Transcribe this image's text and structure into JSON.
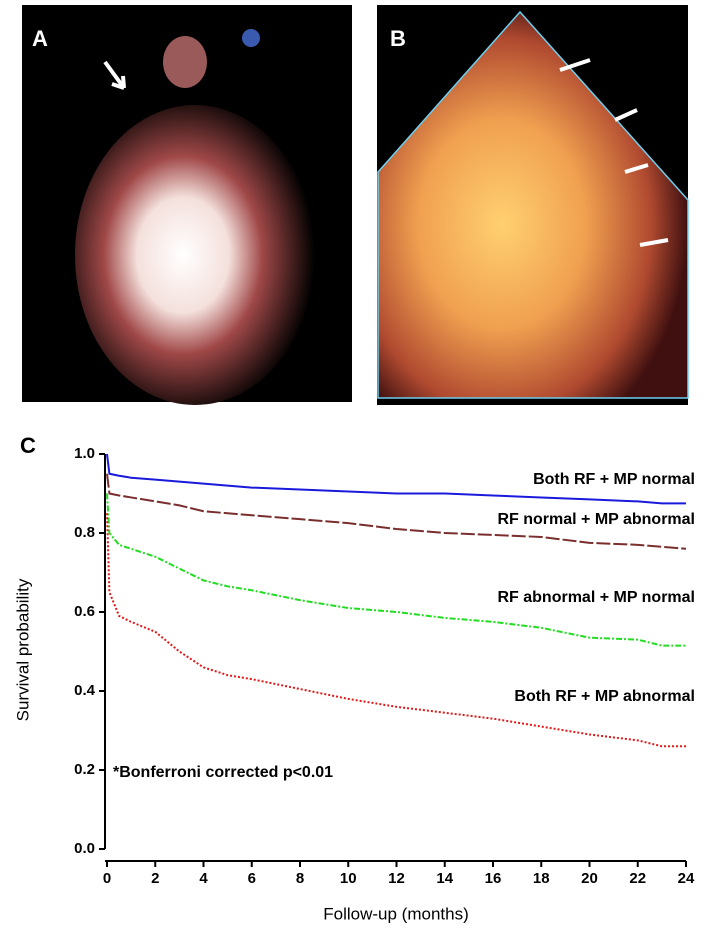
{
  "panels": {
    "a": {
      "label": "A"
    },
    "b": {
      "label": "B"
    }
  },
  "chart_data": {
    "type": "line",
    "panel_label": "C",
    "x_label": "Follow-up (months)",
    "y_label": "Survival probability",
    "annotation": "*Bonferroni corrected p<0.01",
    "x": [
      0,
      0.1,
      0.5,
      1,
      2,
      3,
      4,
      5,
      6,
      8,
      10,
      12,
      14,
      16,
      18,
      20,
      22,
      23,
      24
    ],
    "series": [
      {
        "name": "Both RF + MP normal",
        "color": "#1a1adc",
        "dash": "none",
        "values": [
          1.0,
          0.95,
          0.945,
          0.94,
          0.935,
          0.93,
          0.925,
          0.92,
          0.915,
          0.91,
          0.905,
          0.9,
          0.9,
          0.895,
          0.89,
          0.885,
          0.88,
          0.875,
          0.875
        ]
      },
      {
        "name": "RF normal + MP abnormal",
        "color": "#7a2e2e",
        "dash": "14 3",
        "values": [
          0.95,
          0.9,
          0.895,
          0.89,
          0.88,
          0.87,
          0.855,
          0.85,
          0.845,
          0.835,
          0.825,
          0.81,
          0.8,
          0.795,
          0.79,
          0.775,
          0.77,
          0.765,
          0.76
        ]
      },
      {
        "name": "RF abnormal + MP normal",
        "color": "#22dd22",
        "dash": "6 2 2 2",
        "values": [
          0.9,
          0.8,
          0.77,
          0.76,
          0.74,
          0.71,
          0.68,
          0.665,
          0.655,
          0.63,
          0.61,
          0.6,
          0.585,
          0.575,
          0.56,
          0.535,
          0.53,
          0.515,
          0.515
        ]
      },
      {
        "name": "Both RF + MP abnormal",
        "color": "#e01818",
        "dash": "2 2",
        "values": [
          0.85,
          0.65,
          0.59,
          0.575,
          0.55,
          0.5,
          0.46,
          0.44,
          0.43,
          0.405,
          0.38,
          0.36,
          0.345,
          0.33,
          0.31,
          0.29,
          0.275,
          0.26,
          0.26
        ]
      }
    ],
    "xlim": [
      0,
      24
    ],
    "xticks": [
      0,
      2,
      4,
      6,
      8,
      10,
      12,
      14,
      16,
      18,
      20,
      22,
      24
    ],
    "ylim": [
      0,
      1.0
    ],
    "yticks": [
      {
        "value": 0,
        "label": "0.0"
      },
      {
        "value": 0.2,
        "label": "0.2"
      },
      {
        "value": 0.4,
        "label": "0.4"
      },
      {
        "value": 0.6,
        "label": "0.6"
      },
      {
        "value": 0.8,
        "label": "0.8"
      },
      {
        "value": 1.0,
        "label": "1.0"
      }
    ]
  }
}
